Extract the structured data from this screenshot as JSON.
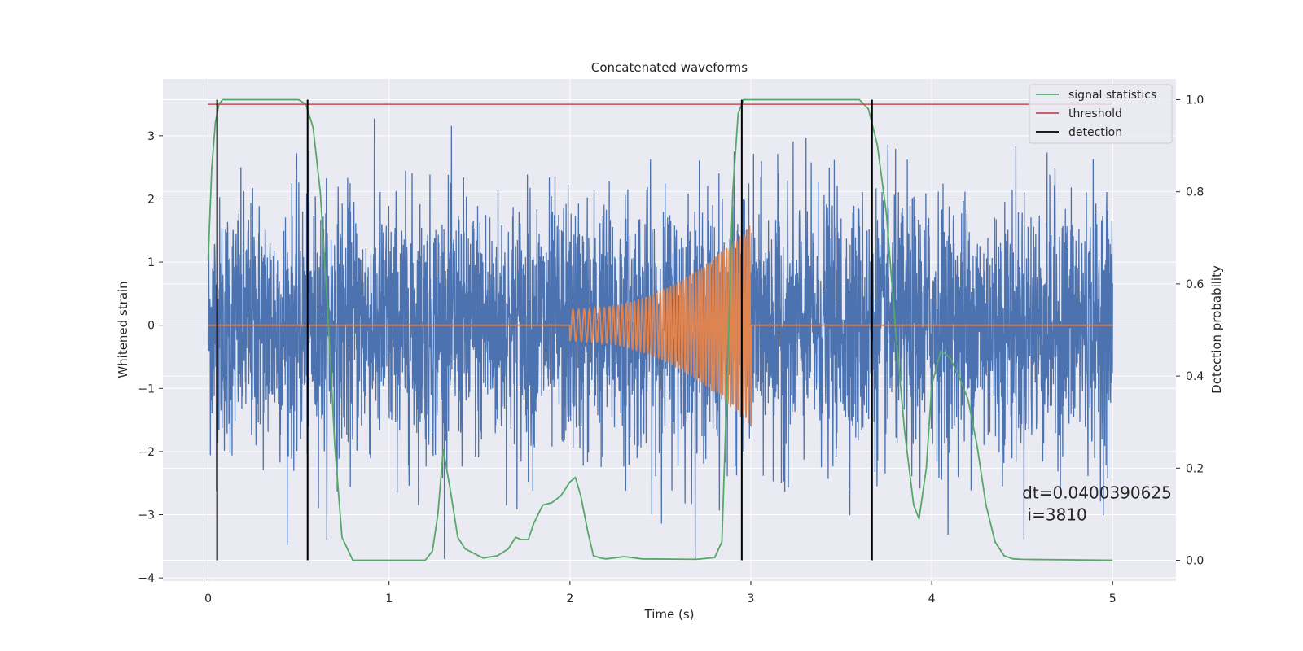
{
  "chart_data": {
    "type": "line",
    "title": "Concatenated waveforms",
    "xlabel": "Time (s)",
    "ylabel": "Whitened strain",
    "y2label": "Detection probability",
    "xlim": [
      -0.25,
      5.35
    ],
    "ylim": [
      -4.05,
      3.9
    ],
    "y2lim": [
      -0.045,
      1.045
    ],
    "xticks": [
      0,
      1,
      2,
      3,
      4,
      5
    ],
    "yticks": [
      -4,
      -3,
      -2,
      -1,
      0,
      1,
      2,
      3
    ],
    "y2ticks": [
      0.0,
      0.2,
      0.4,
      0.6,
      0.8,
      1.0
    ],
    "xtick_labels": [
      "0",
      "1",
      "2",
      "3",
      "4",
      "5"
    ],
    "ytick_labels": [
      "−4",
      "−3",
      "−2",
      "−1",
      "0",
      "1",
      "2",
      "3"
    ],
    "y2tick_labels": [
      "0.0",
      "0.2",
      "0.4",
      "0.6",
      "0.8",
      "1.0"
    ],
    "grid": true,
    "legend_position": "top-right",
    "background": "#eaeaf2",
    "series": [
      {
        "kind": "noise",
        "axis": "left",
        "color": "#4c72b0",
        "x_range": [
          0,
          5
        ],
        "typical_amplitude": 1.0,
        "max_amplitude": 3.6,
        "min_amplitude": -3.7
      },
      {
        "kind": "chirp",
        "axis": "left",
        "color": "#dd8452",
        "x_range": [
          0,
          5
        ],
        "chirp_start": 2.0,
        "chirp_end": 3.0,
        "start_amplitude": 0.25,
        "peak_amplitude": 1.6,
        "min_at_end": -1.75
      },
      {
        "name": "signal statistics",
        "axis": "right",
        "color": "#55a868",
        "x": [
          0.0,
          0.02,
          0.04,
          0.06,
          0.08,
          0.12,
          0.5,
          0.54,
          0.58,
          0.62,
          0.66,
          0.7,
          0.74,
          0.8,
          1.2,
          1.24,
          1.27,
          1.3,
          1.34,
          1.38,
          1.42,
          1.47,
          1.52,
          1.6,
          1.66,
          1.7,
          1.73,
          1.77,
          1.8,
          1.85,
          1.9,
          1.95,
          2.0,
          2.03,
          2.06,
          2.1,
          2.13,
          2.17,
          2.2,
          2.3,
          2.4,
          2.7,
          2.8,
          2.84,
          2.87,
          2.9,
          2.93,
          2.96,
          3.0,
          3.6,
          3.65,
          3.7,
          3.75,
          3.8,
          3.85,
          3.9,
          3.93,
          3.97,
          4.0,
          4.05,
          4.1,
          4.15,
          4.2,
          4.25,
          4.3,
          4.35,
          4.4,
          4.45,
          4.5,
          5.0
        ],
        "y": [
          0.65,
          0.85,
          0.95,
          0.99,
          1.0,
          1.0,
          1.0,
          0.99,
          0.94,
          0.8,
          0.55,
          0.25,
          0.05,
          0.0,
          0.0,
          0.02,
          0.1,
          0.24,
          0.15,
          0.05,
          0.025,
          0.015,
          0.005,
          0.01,
          0.025,
          0.05,
          0.045,
          0.045,
          0.08,
          0.12,
          0.125,
          0.14,
          0.17,
          0.18,
          0.14,
          0.06,
          0.01,
          0.005,
          0.003,
          0.008,
          0.003,
          0.002,
          0.006,
          0.04,
          0.4,
          0.8,
          0.97,
          1.0,
          1.0,
          1.0,
          0.98,
          0.9,
          0.75,
          0.5,
          0.28,
          0.12,
          0.09,
          0.2,
          0.38,
          0.455,
          0.44,
          0.4,
          0.35,
          0.25,
          0.12,
          0.04,
          0.01,
          0.003,
          0.002,
          0.0
        ]
      },
      {
        "name": "threshold",
        "axis": "right",
        "color": "#c44e52",
        "x": [
          0,
          5
        ],
        "y": [
          0.99,
          0.99
        ]
      },
      {
        "name": "detection",
        "axis": "right",
        "color": "#000000",
        "x": [
          0.05,
          0.55,
          2.95,
          3.67
        ],
        "y_range": [
          0,
          1
        ]
      }
    ],
    "annotation": {
      "line1": "dt=0.0400390625",
      "line2": " i=3810",
      "x": 4.5,
      "y": 0.12
    }
  }
}
